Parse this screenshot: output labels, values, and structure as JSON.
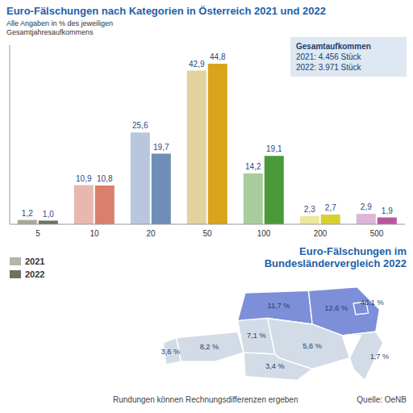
{
  "chart_data": [
    {
      "type": "bar",
      "title": "Euro-Fälschungen nach Kategorien in Österreich 2021 und 2022",
      "subtitle": "Alle Angaben in % des jeweiligen Gesamtjahresaufkommens",
      "annotations": [
        "Gesamtaufkommen",
        "2021: 4.456 Stück",
        "2022: 3.971 Stück",
        "Rundungen können Rechnungsdifferenzen ergeben",
        "Quelle: OeNB"
      ],
      "categories": [
        "5",
        "10",
        "20",
        "50",
        "100",
        "200",
        "500"
      ],
      "series": [
        {
          "name": "2021",
          "color": "#b4b4a8",
          "colors": [
            "#a9a99a",
            "#e8b8b0",
            "#b8c6de",
            "#e2d29e",
            "#a9cc9c",
            "#ece89e",
            "#dcb6d8"
          ],
          "values": [
            1.2,
            10.9,
            25.6,
            42.9,
            14.2,
            2.3,
            2.9
          ],
          "value_labels": [
            "1,2",
            "10,9",
            "25,6",
            "42,9",
            "14,2",
            "2,3",
            "2,9"
          ]
        },
        {
          "name": "2022",
          "color": "#6f6f62",
          "colors": [
            "#6f6f62",
            "#d97f6c",
            "#6e8eb8",
            "#d9a31c",
            "#4a9a3c",
            "#d6d133",
            "#b8569e"
          ],
          "values": [
            1.0,
            10.8,
            19.7,
            44.8,
            19.1,
            2.7,
            1.9
          ],
          "value_labels": [
            "1,0",
            "10,8",
            "19,7",
            "44,8",
            "19,1",
            "2,7",
            "1,9"
          ]
        }
      ],
      "ylim": [
        0,
        50
      ],
      "tick_labels": "x",
      "data_labels": true,
      "legend": "bottom-left",
      "grid": false
    },
    {
      "type": "map",
      "title": "Euro-Fälschungen im Bundesländervergleich 2022",
      "values": [
        3.6,
        8.2,
        7.1,
        11.7,
        12.6,
        46.1,
        5.6,
        1.7,
        3.4
      ],
      "value_labels": [
        "3,6 %",
        "8,2 %",
        "7,1 %",
        "11,7 %",
        "12,6 %",
        "46,1 %",
        "5,6 %",
        "1,7 %",
        "3,4 %"
      ],
      "colors": [
        "#d3dce6",
        "#d3dce6",
        "#d3dce6",
        "#7d8fd8",
        "#7d8fd8",
        "#7d8fd8",
        "#d3dce6",
        "#d3dce6",
        "#d3dce6"
      ],
      "data_labels": true
    }
  ]
}
